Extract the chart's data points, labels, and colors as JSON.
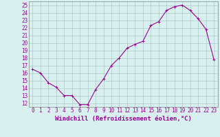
{
  "x": [
    0,
    1,
    2,
    3,
    4,
    5,
    6,
    7,
    8,
    9,
    10,
    11,
    12,
    13,
    14,
    15,
    16,
    17,
    18,
    19,
    20,
    21,
    22,
    23
  ],
  "y": [
    16.5,
    16.0,
    14.7,
    14.1,
    13.0,
    13.0,
    11.8,
    11.8,
    13.8,
    15.2,
    17.0,
    18.0,
    19.3,
    19.8,
    20.2,
    22.3,
    22.8,
    24.3,
    24.8,
    25.0,
    24.3,
    23.2,
    21.8,
    17.8
  ],
  "line_color": "#990099",
  "marker": "+",
  "marker_size": 3,
  "marker_lw": 0.7,
  "bg_color": "#d8f0f0",
  "grid_color": "#b0c8c8",
  "xlabel": "Windchill (Refroidissement éolien,°C)",
  "xlabel_color": "#990099",
  "ylabel_vals": [
    12,
    13,
    14,
    15,
    16,
    17,
    18,
    19,
    20,
    21,
    22,
    23,
    24,
    25
  ],
  "ylim": [
    11.5,
    25.5
  ],
  "xlim": [
    -0.5,
    23.5
  ],
  "xtick_labels": [
    "0",
    "1",
    "2",
    "3",
    "4",
    "5",
    "6",
    "7",
    "8",
    "9",
    "10",
    "11",
    "12",
    "13",
    "14",
    "15",
    "16",
    "17",
    "18",
    "19",
    "20",
    "21",
    "22",
    "23"
  ],
  "tick_color": "#990099",
  "tick_fontsize": 5.5,
  "xlabel_fontsize": 6.5,
  "line_width": 0.8,
  "spine_color": "#808080"
}
